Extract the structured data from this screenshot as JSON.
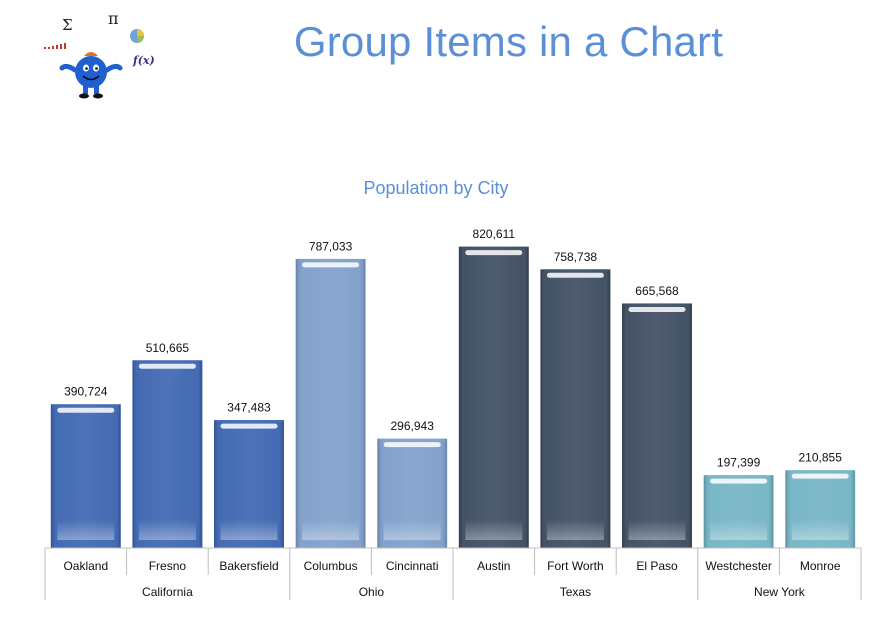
{
  "page": {
    "title": "Group Items in a Chart"
  },
  "logo": {
    "icon": "math-mascot-icon",
    "sigma": "Σ",
    "pi": "π",
    "fx": "f(x)"
  },
  "colors": {
    "title": "#5b8fd6",
    "California": "#3a63b0",
    "Ohio": "#7c9dc9",
    "Texas": "#3a4a5e",
    "New York": "#72b3c4",
    "axis": "#bfbfbf"
  },
  "chart_data": {
    "type": "bar",
    "title": "Population by City",
    "xlabel": "",
    "ylabel": "",
    "ylim": [
      0,
      900000
    ],
    "grid": false,
    "legend": "none",
    "categories": [
      "Oakland",
      "Fresno",
      "Bakersfield",
      "Columbus",
      "Cincinnati",
      "Austin",
      "Fort Worth",
      "El Paso",
      "Westchester",
      "Monroe"
    ],
    "values": [
      390724,
      510665,
      347483,
      787033,
      296943,
      820611,
      758738,
      665568,
      197399,
      210855
    ],
    "value_labels": [
      "390,724",
      "510,665",
      "347,483",
      "787,033",
      "296,943",
      "820,611",
      "758,738",
      "665,568",
      "197,399",
      "210,855"
    ],
    "groups": [
      {
        "name": "California",
        "categories": [
          "Oakland",
          "Fresno",
          "Bakersfield"
        ]
      },
      {
        "name": "Ohio",
        "categories": [
          "Columbus",
          "Cincinnati"
        ]
      },
      {
        "name": "Texas",
        "categories": [
          "Austin",
          "Fort Worth",
          "El Paso"
        ]
      },
      {
        "name": "New York",
        "categories": [
          "Westchester",
          "Monroe"
        ]
      }
    ]
  }
}
